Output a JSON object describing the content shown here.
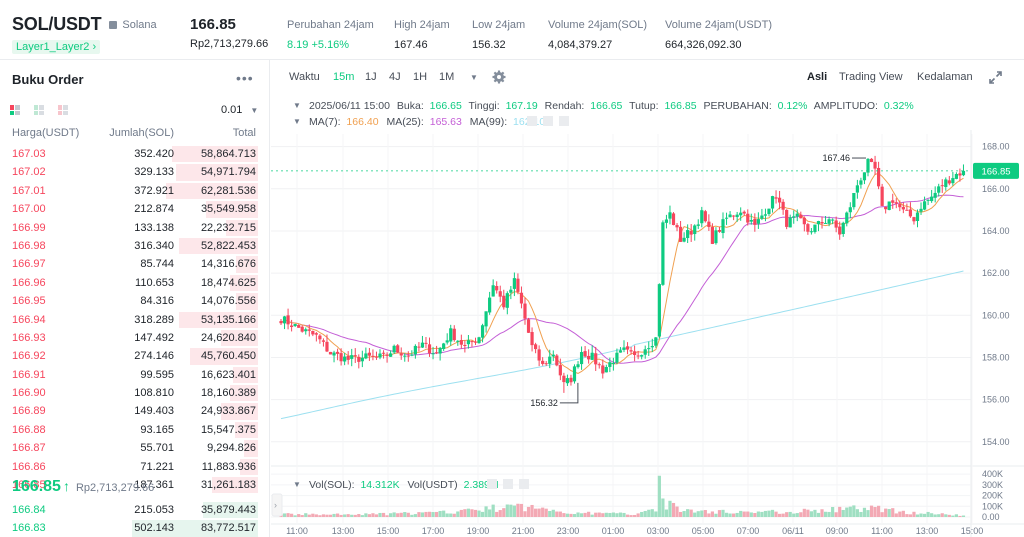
{
  "header": {
    "pair": "SOL/USDT",
    "coin_name": "Solana",
    "tag": "Layer1_Layer2",
    "tag_chevron": "›",
    "price": "166.85",
    "price_idr": "Rp2,713,279.66",
    "stats": [
      {
        "label": "Perubahan 24jam",
        "value": "8.19 +5.16%"
      },
      {
        "label": "High 24jam",
        "value": "167.46"
      },
      {
        "label": "Low 24jam",
        "value": "156.32"
      },
      {
        "label": "Volume 24jam(SOL)",
        "value": "4,084,379.27"
      },
      {
        "label": "Volume 24jam(USDT)",
        "value": "664,326,092.30"
      }
    ]
  },
  "orderbook": {
    "title": "Buku Order",
    "more": "•••",
    "precision": "0.01",
    "precision_caret": "▼",
    "col_price": "Harga(USDT)",
    "col_qty": "Jumlah(SOL)",
    "col_total": "Total",
    "asks": [
      {
        "price": "167.03",
        "qty": "352.420",
        "total": "58,864.713",
        "depth": 0.56
      },
      {
        "price": "167.02",
        "qty": "329.133",
        "total": "54,971.794",
        "depth": 0.53
      },
      {
        "price": "167.01",
        "qty": "372.921",
        "total": "62,281.536",
        "depth": 0.6
      },
      {
        "price": "167.00",
        "qty": "212.874",
        "total": "35,549.958",
        "depth": 0.34
      },
      {
        "price": "166.99",
        "qty": "133.138",
        "total": "22,232.715",
        "depth": 0.21
      },
      {
        "price": "166.98",
        "qty": "316.340",
        "total": "52,822.453",
        "depth": 0.51
      },
      {
        "price": "166.97",
        "qty": "85.744",
        "total": "14,316.676",
        "depth": 0.14
      },
      {
        "price": "166.96",
        "qty": "110.653",
        "total": "18,474.625",
        "depth": 0.18
      },
      {
        "price": "166.95",
        "qty": "84.316",
        "total": "14,076.556",
        "depth": 0.14
      },
      {
        "price": "166.94",
        "qty": "318.289",
        "total": "53,135.166",
        "depth": 0.51
      },
      {
        "price": "166.93",
        "qty": "147.492",
        "total": "24,620.840",
        "depth": 0.24
      },
      {
        "price": "166.92",
        "qty": "274.146",
        "total": "45,760.450",
        "depth": 0.44
      },
      {
        "price": "166.91",
        "qty": "99.595",
        "total": "16,623.401",
        "depth": 0.16
      },
      {
        "price": "166.90",
        "qty": "108.810",
        "total": "18,160.389",
        "depth": 0.18
      },
      {
        "price": "166.89",
        "qty": "149.403",
        "total": "24,933.867",
        "depth": 0.24
      },
      {
        "price": "166.88",
        "qty": "93.165",
        "total": "15,547.375",
        "depth": 0.15
      },
      {
        "price": "166.87",
        "qty": "55.701",
        "total": "9,294.826",
        "depth": 0.09
      },
      {
        "price": "166.86",
        "qty": "71.221",
        "total": "11,883.936",
        "depth": 0.12
      },
      {
        "price": "166.85",
        "qty": "187.361",
        "total": "31,261.183",
        "depth": 0.3
      }
    ],
    "mid_price": "166.85",
    "mid_arrow": "↑",
    "mid_idr": "Rp2,713,279.66",
    "bids": [
      {
        "price": "166.84",
        "qty": "215.053",
        "total": "35,879.443",
        "depth": 0.36
      },
      {
        "price": "166.83",
        "qty": "502.143",
        "total": "83,772.517",
        "depth": 0.82
      }
    ]
  },
  "toolbar": {
    "waktu": "Waktu",
    "intervals": [
      "15m",
      "1J",
      "4J",
      "1H",
      "1M"
    ],
    "active_interval": "15m",
    "dropdown": "▼",
    "views": [
      "Asli",
      "Trading View",
      "Kedalaman"
    ],
    "active_view": "Asli"
  },
  "legend": {
    "ohlc": {
      "date": "2025/06/11 15:00",
      "open_label": "Buka:",
      "open": "166.65",
      "high_label": "Tinggi:",
      "high": "167.19",
      "low_label": "Rendah:",
      "low": "166.65",
      "close_label": "Tutup:",
      "close": "166.85",
      "change_label": "PERUBAHAN:",
      "change": "0.12%",
      "amp_label": "AMPLITUDO:",
      "amp": "0.32%"
    },
    "ma": [
      {
        "label": "MA(7):",
        "value": "166.40",
        "color": "#f0a050"
      },
      {
        "label": "MA(25):",
        "value": "165.63",
        "color": "#c45fd6"
      },
      {
        "label": "MA(99):",
        "value": "162.10",
        "color": "#9ce0f0"
      }
    ],
    "vol": {
      "sol_label": "Vol(SOL):",
      "sol": "14.312K",
      "usdt_label": "Vol(USDT)",
      "usdt": "2.389M"
    }
  },
  "colors": {
    "up": "#0ecb81",
    "down": "#f6465d",
    "ma7": "#f0a050",
    "ma25": "#c45fd6",
    "ma99": "#9ce0f0"
  },
  "chart_data": {
    "type": "candlestick",
    "y_ticks": [
      "168.00",
      "166.00",
      "164.00",
      "162.00",
      "160.00",
      "158.00",
      "156.00",
      "154.00"
    ],
    "ylim": [
      153.8,
      168.6
    ],
    "vol_ticks": [
      "400K",
      "300K",
      "200K",
      "100K",
      "0.00"
    ],
    "vol_ylim": [
      0,
      420000
    ],
    "x_ticks": [
      "11:00",
      "13:00",
      "15:00",
      "17:00",
      "19:00",
      "21:00",
      "23:00",
      "01:00",
      "03:00",
      "05:00",
      "07:00",
      "06/11",
      "09:00",
      "11:00",
      "13:00",
      "15:00"
    ],
    "current_price": "166.85",
    "high_marker": "167.46",
    "low_marker": "156.32",
    "waypoints": [
      [
        0,
        159.85
      ],
      [
        6,
        159.3
      ],
      [
        10,
        159.0
      ],
      [
        14,
        158.2
      ],
      [
        19,
        157.9
      ],
      [
        24,
        158.0
      ],
      [
        29,
        158.0
      ],
      [
        32,
        158.4
      ],
      [
        36,
        158.1
      ],
      [
        40,
        158.6
      ],
      [
        44,
        158.2
      ],
      [
        48,
        159.2
      ],
      [
        52,
        158.5
      ],
      [
        56,
        159.0
      ],
      [
        60,
        161.5
      ],
      [
        63,
        160.5
      ],
      [
        66,
        161.6
      ],
      [
        68,
        160.5
      ],
      [
        71,
        158.5
      ],
      [
        74,
        157.6
      ],
      [
        77,
        158.2
      ],
      [
        80,
        156.7
      ],
      [
        82,
        157.0
      ],
      [
        85,
        158.3
      ],
      [
        88,
        158.0
      ],
      [
        91,
        157.4
      ],
      [
        94,
        157.9
      ],
      [
        97,
        158.3
      ],
      [
        100,
        158.0
      ],
      [
        103,
        158.5
      ],
      [
        106,
        158.9
      ],
      [
        108,
        164.3
      ],
      [
        110,
        164.8
      ],
      [
        113,
        163.6
      ],
      [
        116,
        164.0
      ],
      [
        119,
        164.8
      ],
      [
        122,
        163.6
      ],
      [
        126,
        164.6
      ],
      [
        130,
        165.0
      ],
      [
        134,
        164.2
      ],
      [
        137,
        165.0
      ],
      [
        140,
        165.7
      ],
      [
        143,
        164.4
      ],
      [
        146,
        164.6
      ],
      [
        149,
        164.0
      ],
      [
        152,
        164.3
      ],
      [
        155,
        164.6
      ],
      [
        158,
        163.9
      ],
      [
        161,
        165.2
      ],
      [
        163,
        166.2
      ],
      [
        166,
        167.2
      ],
      [
        168,
        166.9
      ],
      [
        170,
        165.0
      ],
      [
        173,
        165.5
      ],
      [
        176,
        164.9
      ],
      [
        179,
        164.6
      ],
      [
        181,
        165.2
      ],
      [
        184,
        165.6
      ],
      [
        187,
        166.2
      ],
      [
        190,
        166.6
      ],
      [
        193,
        166.85
      ]
    ],
    "volume_waypoints": [
      [
        0,
        26000
      ],
      [
        20,
        22000
      ],
      [
        45,
        40000
      ],
      [
        60,
        80000
      ],
      [
        68,
        95000
      ],
      [
        78,
        60000
      ],
      [
        85,
        35000
      ],
      [
        100,
        30000
      ],
      [
        106,
        90000
      ],
      [
        107,
        385000
      ],
      [
        108,
        140000
      ],
      [
        112,
        75000
      ],
      [
        120,
        50000
      ],
      [
        140,
        48000
      ],
      [
        160,
        70000
      ],
      [
        166,
        90000
      ],
      [
        175,
        50000
      ],
      [
        193,
        14312
      ]
    ]
  }
}
